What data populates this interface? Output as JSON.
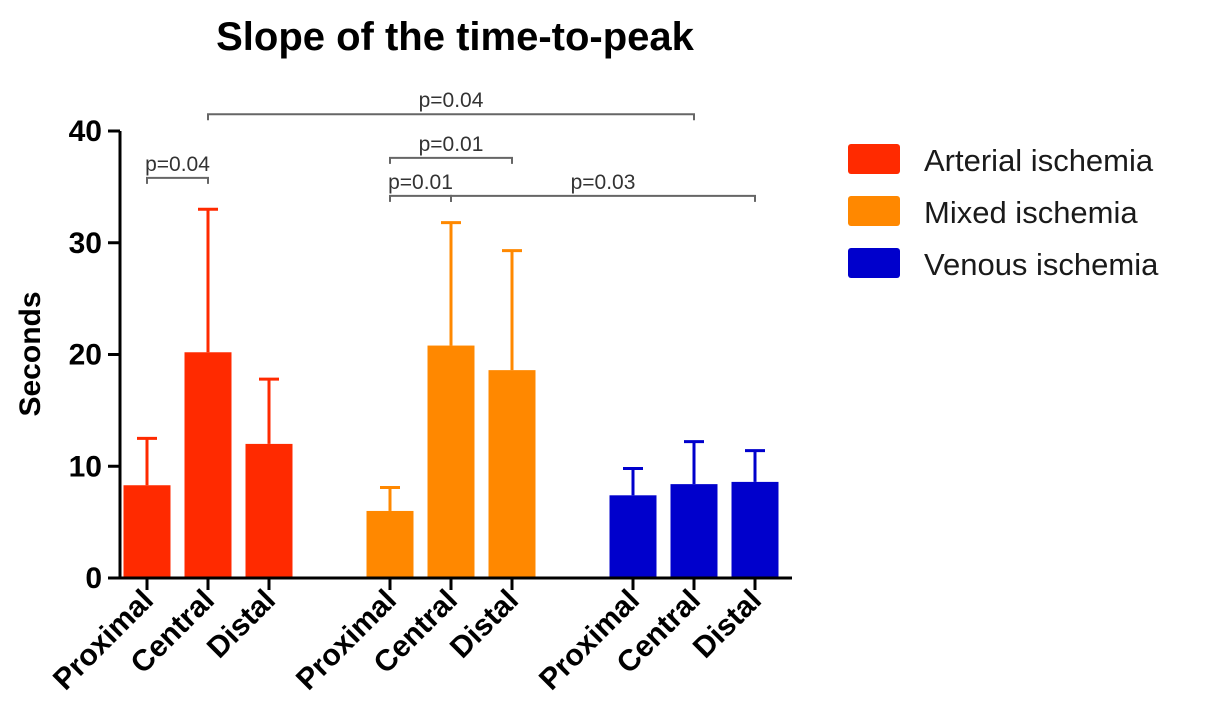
{
  "chart_data": {
    "type": "bar",
    "title": "Slope of the time-to-peak",
    "ylabel": "Seconds",
    "xlabel": "",
    "ylim": [
      0,
      40
    ],
    "yticks": [
      0,
      10,
      20,
      30,
      40
    ],
    "grid": false,
    "legend_position": "top-right",
    "groups": [
      {
        "name": "Arterial ischemia",
        "color": "#ff2a00",
        "categories": [
          "Proximal",
          "Central",
          "Distal"
        ],
        "values": [
          8.3,
          20.2,
          12.0
        ],
        "error_upper": [
          12.5,
          33.0,
          17.8
        ]
      },
      {
        "name": "Mixed ischemia",
        "color": "#ff8800",
        "categories": [
          "Proximal",
          "Central",
          "Distal"
        ],
        "values": [
          6.0,
          20.8,
          18.6
        ],
        "error_upper": [
          8.1,
          31.8,
          29.3
        ]
      },
      {
        "name": "Venous ischemia",
        "color": "#0000cc",
        "categories": [
          "Proximal",
          "Central",
          "Distal"
        ],
        "values": [
          7.4,
          8.4,
          8.6
        ],
        "error_upper": [
          9.8,
          12.2,
          11.4
        ]
      }
    ],
    "annotations": [
      {
        "label": "p=0.04",
        "from": [
          0,
          0
        ],
        "to": [
          0,
          1
        ],
        "y": 35.8
      },
      {
        "label": "p=0.04",
        "from": [
          0,
          1
        ],
        "to": [
          2,
          1
        ],
        "y": 41.5
      },
      {
        "label": "p=0.01",
        "from": [
          1,
          0
        ],
        "to": [
          1,
          2
        ],
        "y": 37.6
      },
      {
        "label": "p=0.01",
        "from": [
          1,
          0
        ],
        "to": [
          1,
          1
        ],
        "y": 34.2
      },
      {
        "label": "p=0.03",
        "from": [
          1,
          1
        ],
        "to": [
          2,
          2
        ],
        "y": 34.2
      }
    ]
  }
}
